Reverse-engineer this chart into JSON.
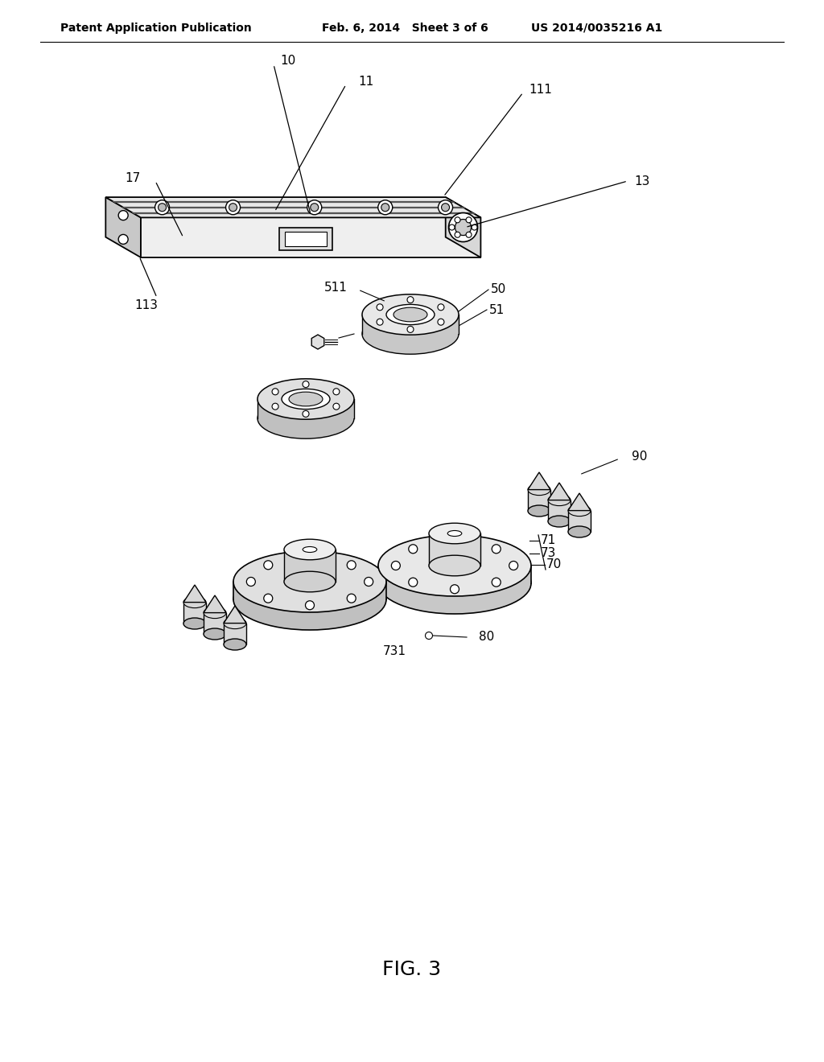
{
  "header_left": "Patent Application Publication",
  "header_mid": "Feb. 6, 2014   Sheet 3 of 6",
  "header_right": "US 2014/0035216 A1",
  "figure_label": "FIG. 3",
  "background_color": "#ffffff",
  "line_color": "#000000",
  "label_fontsize": 11,
  "header_fontsize": 10,
  "fig_label_fontsize": 18
}
